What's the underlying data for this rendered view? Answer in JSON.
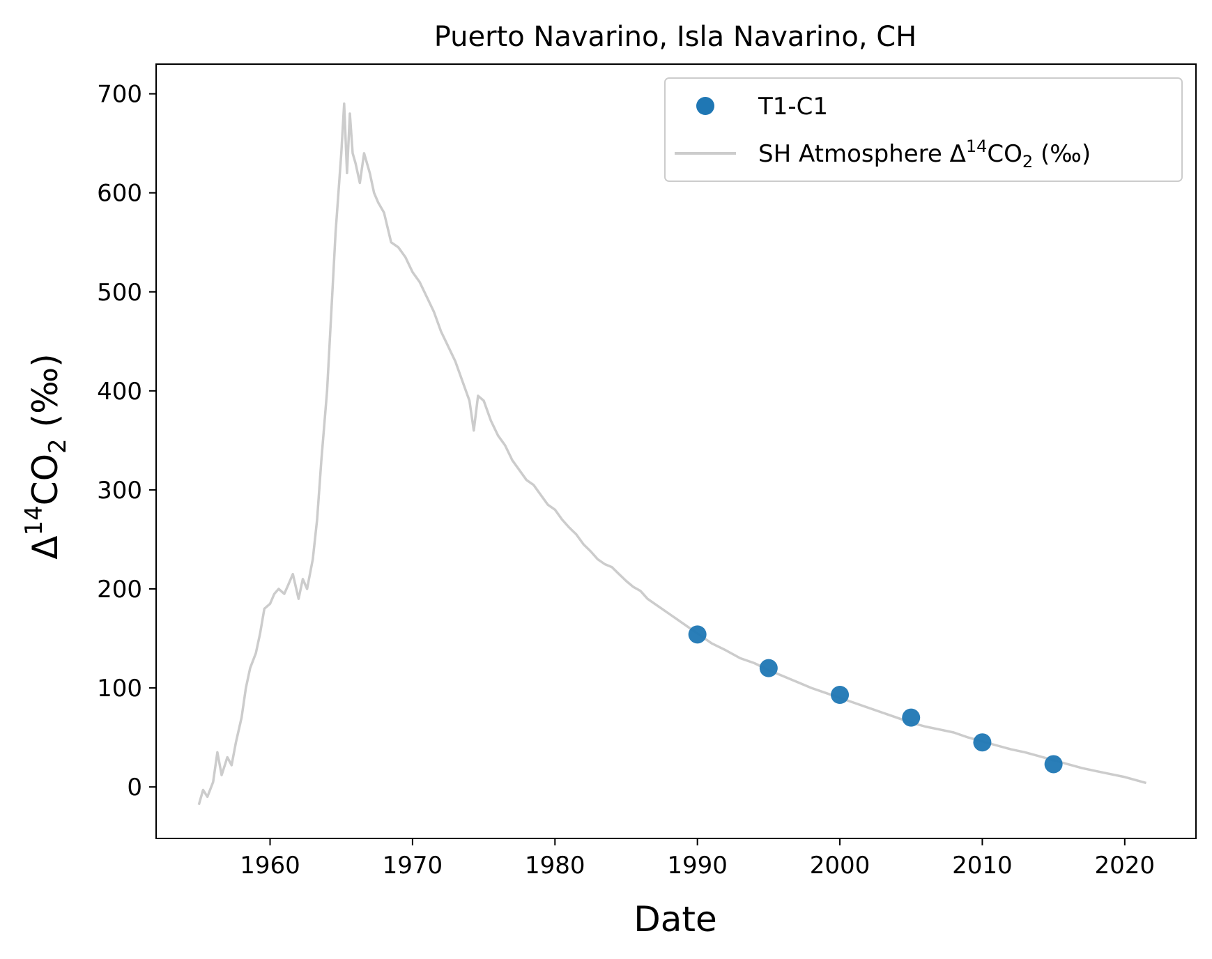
{
  "chart_data": {
    "type": "scatter",
    "title": "Puerto Navarino, Isla Navarino, CH",
    "xlabel": "Date",
    "ylabel": "Δ14CO2 (‰)",
    "xlim": [
      1952,
      2025
    ],
    "ylim": [
      -52,
      730
    ],
    "x_ticks": [
      1960,
      1970,
      1980,
      1990,
      2000,
      2010,
      2020
    ],
    "y_ticks": [
      0,
      100,
      200,
      300,
      400,
      500,
      600,
      700
    ],
    "grid": false,
    "legend_position": "top-right",
    "series": [
      {
        "name": "T1-C1",
        "kind": "scatter",
        "color": "#1f77b4",
        "x": [
          1990,
          1995,
          2000,
          2005,
          2010,
          2015
        ],
        "y": [
          154,
          120,
          93,
          70,
          45,
          23
        ]
      },
      {
        "name": "SH Atmosphere Δ14CO2 (‰)",
        "kind": "line",
        "color": "#cccccc",
        "x": [
          1955.0,
          1955.3,
          1955.6,
          1956.0,
          1956.3,
          1956.6,
          1957.0,
          1957.3,
          1957.6,
          1958.0,
          1958.3,
          1958.6,
          1959.0,
          1959.3,
          1959.6,
          1960.0,
          1960.3,
          1960.6,
          1961.0,
          1961.3,
          1961.6,
          1962.0,
          1962.3,
          1962.6,
          1963.0,
          1963.3,
          1963.6,
          1964.0,
          1964.3,
          1964.6,
          1965.0,
          1965.2,
          1965.4,
          1965.6,
          1965.8,
          1966.0,
          1966.3,
          1966.6,
          1967.0,
          1967.3,
          1967.6,
          1968.0,
          1968.5,
          1969.0,
          1969.5,
          1970.0,
          1970.5,
          1971.0,
          1971.5,
          1972.0,
          1972.5,
          1973.0,
          1973.5,
          1974.0,
          1974.3,
          1974.6,
          1975.0,
          1975.5,
          1976.0,
          1976.5,
          1977.0,
          1977.5,
          1978.0,
          1978.5,
          1979.0,
          1979.5,
          1980.0,
          1980.5,
          1981.0,
          1981.5,
          1982.0,
          1982.5,
          1983.0,
          1983.5,
          1984.0,
          1984.5,
          1985.0,
          1985.5,
          1986.0,
          1986.5,
          1987.0,
          1987.5,
          1988.0,
          1988.5,
          1989.0,
          1990.0,
          1991.0,
          1992.0,
          1993.0,
          1994.0,
          1995.0,
          1996.0,
          1997.0,
          1998.0,
          1999.0,
          2000.0,
          2001.0,
          2002.0,
          2003.0,
          2004.0,
          2005.0,
          2006.0,
          2007.0,
          2008.0,
          2009.0,
          2010.0,
          2011.0,
          2012.0,
          2013.0,
          2014.0,
          2015.0,
          2016.0,
          2017.0,
          2018.0,
          2019.0,
          2020.0,
          2021.0,
          2021.5
        ],
        "y": [
          -18,
          -3,
          -10,
          5,
          35,
          12,
          30,
          22,
          45,
          70,
          100,
          120,
          135,
          155,
          180,
          185,
          195,
          200,
          195,
          205,
          215,
          190,
          210,
          200,
          230,
          270,
          330,
          400,
          480,
          560,
          640,
          690,
          620,
          680,
          640,
          630,
          610,
          640,
          620,
          600,
          590,
          580,
          550,
          545,
          535,
          520,
          510,
          495,
          480,
          460,
          445,
          430,
          410,
          390,
          360,
          395,
          390,
          370,
          355,
          345,
          330,
          320,
          310,
          305,
          295,
          285,
          280,
          270,
          262,
          255,
          245,
          238,
          230,
          225,
          222,
          215,
          208,
          202,
          198,
          190,
          185,
          180,
          175,
          170,
          165,
          155,
          145,
          138,
          130,
          125,
          118,
          112,
          106,
          100,
          95,
          90,
          85,
          80,
          75,
          70,
          65,
          61,
          58,
          55,
          50,
          46,
          42,
          38,
          35,
          31,
          27,
          23,
          19,
          16,
          13,
          10,
          6,
          4
        ]
      }
    ]
  }
}
